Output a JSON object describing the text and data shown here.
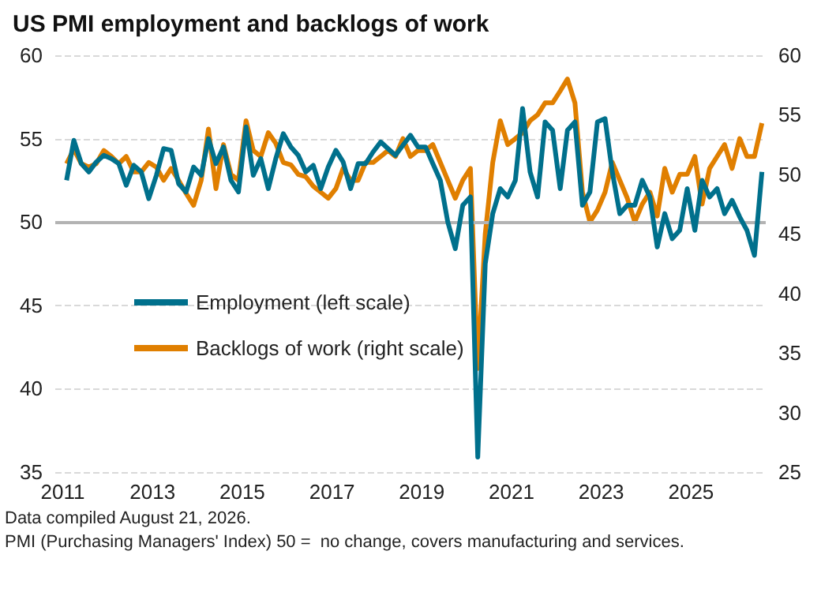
{
  "chart_data": {
    "type": "line",
    "title": "US PMI employment and backlogs of work",
    "annotations": [
      "Data compiled August 21, 2026.",
      "PMI (Purchasing Managers' Index) 50 =  no change, covers manufacturing and services."
    ],
    "x": [
      "2011-02",
      "2011-04",
      "2011-06",
      "2011-08",
      "2011-10",
      "2011-12",
      "2012-02",
      "2012-04",
      "2012-06",
      "2012-08",
      "2012-10",
      "2012-12",
      "2013-02",
      "2013-04",
      "2013-06",
      "2013-08",
      "2013-10",
      "2013-12",
      "2014-02",
      "2014-04",
      "2014-06",
      "2014-08",
      "2014-10",
      "2014-12",
      "2015-02",
      "2015-04",
      "2015-06",
      "2015-08",
      "2015-10",
      "2015-12",
      "2016-02",
      "2016-04",
      "2016-06",
      "2016-08",
      "2016-10",
      "2016-12",
      "2017-02",
      "2017-04",
      "2017-06",
      "2017-08",
      "2017-10",
      "2017-12",
      "2018-02",
      "2018-04",
      "2018-06",
      "2018-08",
      "2018-10",
      "2018-12",
      "2019-02",
      "2019-04",
      "2019-06",
      "2019-08",
      "2019-10",
      "2019-12",
      "2020-02",
      "2020-04",
      "2020-06",
      "2020-08",
      "2020-10",
      "2020-12",
      "2021-02",
      "2021-04",
      "2021-06",
      "2021-08",
      "2021-10",
      "2021-12",
      "2022-02",
      "2022-04",
      "2022-06",
      "2022-08",
      "2022-10",
      "2022-12",
      "2023-02",
      "2023-04",
      "2023-06",
      "2023-08",
      "2023-10",
      "2023-12",
      "2024-02",
      "2024-04",
      "2024-06",
      "2024-08",
      "2024-10",
      "2024-12",
      "2025-02",
      "2025-04",
      "2025-06",
      "2025-08",
      "2025-10",
      "2025-12",
      "2026-02",
      "2026-04",
      "2026-06",
      "2026-08"
    ],
    "series": [
      {
        "name": "Employment (left scale)",
        "color": "#00708c",
        "values": [
          52.5,
          54.9,
          53.5,
          53.0,
          53.6,
          54.0,
          53.8,
          53.5,
          52.2,
          53.4,
          53.0,
          51.4,
          52.8,
          54.4,
          54.3,
          52.3,
          51.8,
          53.3,
          52.8,
          55.0,
          53.5,
          54.5,
          52.5,
          51.8,
          55.7,
          52.8,
          53.8,
          52.0,
          53.8,
          55.3,
          54.5,
          54.0,
          53.0,
          53.4,
          52.0,
          53.3,
          54.3,
          53.6,
          52.0,
          53.5,
          53.5,
          54.2,
          54.8,
          54.4,
          54.0,
          54.6,
          55.2,
          54.5,
          54.5,
          53.5,
          52.5,
          50.0,
          48.4,
          51.0,
          51.5,
          35.9,
          47.5,
          50.5,
          52.0,
          51.5,
          52.5,
          56.8,
          53.0,
          51.5,
          56.0,
          55.5,
          52.0,
          55.5,
          56.0,
          51.0,
          51.8,
          56.0,
          56.2,
          53.0,
          50.5,
          51.0,
          51.0,
          52.5,
          51.5,
          48.5,
          50.5,
          49.0,
          49.5,
          52.0,
          49.5,
          52.5,
          51.5,
          52.0,
          50.5,
          51.3,
          50.3,
          49.5,
          48.0,
          53.0
        ]
      },
      {
        "name": "Backlogs of work (right scale)",
        "color": "#e07f00",
        "axis": "y2",
        "values": [
          50.9,
          52.1,
          50.9,
          50.6,
          50.9,
          52.0,
          51.5,
          50.9,
          51.5,
          50.2,
          50.2,
          51.0,
          50.6,
          49.5,
          50.5,
          49.5,
          48.4,
          47.4,
          49.5,
          53.8,
          48.8,
          52.5,
          50.0,
          49.5,
          54.5,
          52.0,
          51.5,
          53.5,
          52.6,
          51.0,
          50.8,
          50.0,
          49.8,
          49.0,
          48.5,
          48.0,
          48.8,
          50.5,
          49.5,
          49.5,
          51.0,
          51.0,
          51.5,
          52.0,
          51.5,
          53.0,
          51.5,
          52.0,
          52.0,
          52.5,
          51.0,
          49.5,
          48.0,
          49.5,
          50.5,
          33.7,
          45.0,
          51.0,
          54.5,
          52.5,
          53.0,
          53.5,
          54.5,
          55.0,
          56.0,
          56.0,
          57.0,
          58.0,
          56.0,
          48.5,
          46.0,
          47.0,
          48.5,
          51.0,
          49.5,
          48.0,
          46.0,
          47.5,
          48.5,
          46.5,
          50.5,
          48.5,
          50.0,
          50.0,
          51.5,
          47.5,
          50.5,
          51.5,
          52.5,
          50.5,
          53.0,
          51.5,
          51.5,
          54.3
        ]
      }
    ],
    "xlim": [
      "2010-11",
      "2026-09"
    ],
    "xticks": [
      "2011",
      "2013",
      "2015",
      "2017",
      "2019",
      "2021",
      "2023",
      "2025"
    ],
    "ylim": [
      35,
      60
    ],
    "yticks": [
      35,
      40,
      45,
      50,
      55,
      60
    ],
    "y2lim": [
      25,
      60
    ],
    "y2ticks": [
      25,
      30,
      35,
      40,
      45,
      50,
      55,
      60
    ],
    "ref_lines": [
      {
        "axis": "y",
        "value": 50,
        "label": null,
        "color": "#b3b3b3"
      }
    ],
    "grid": "y",
    "legend": "left",
    "marker": "none",
    "line_style": "solid"
  }
}
